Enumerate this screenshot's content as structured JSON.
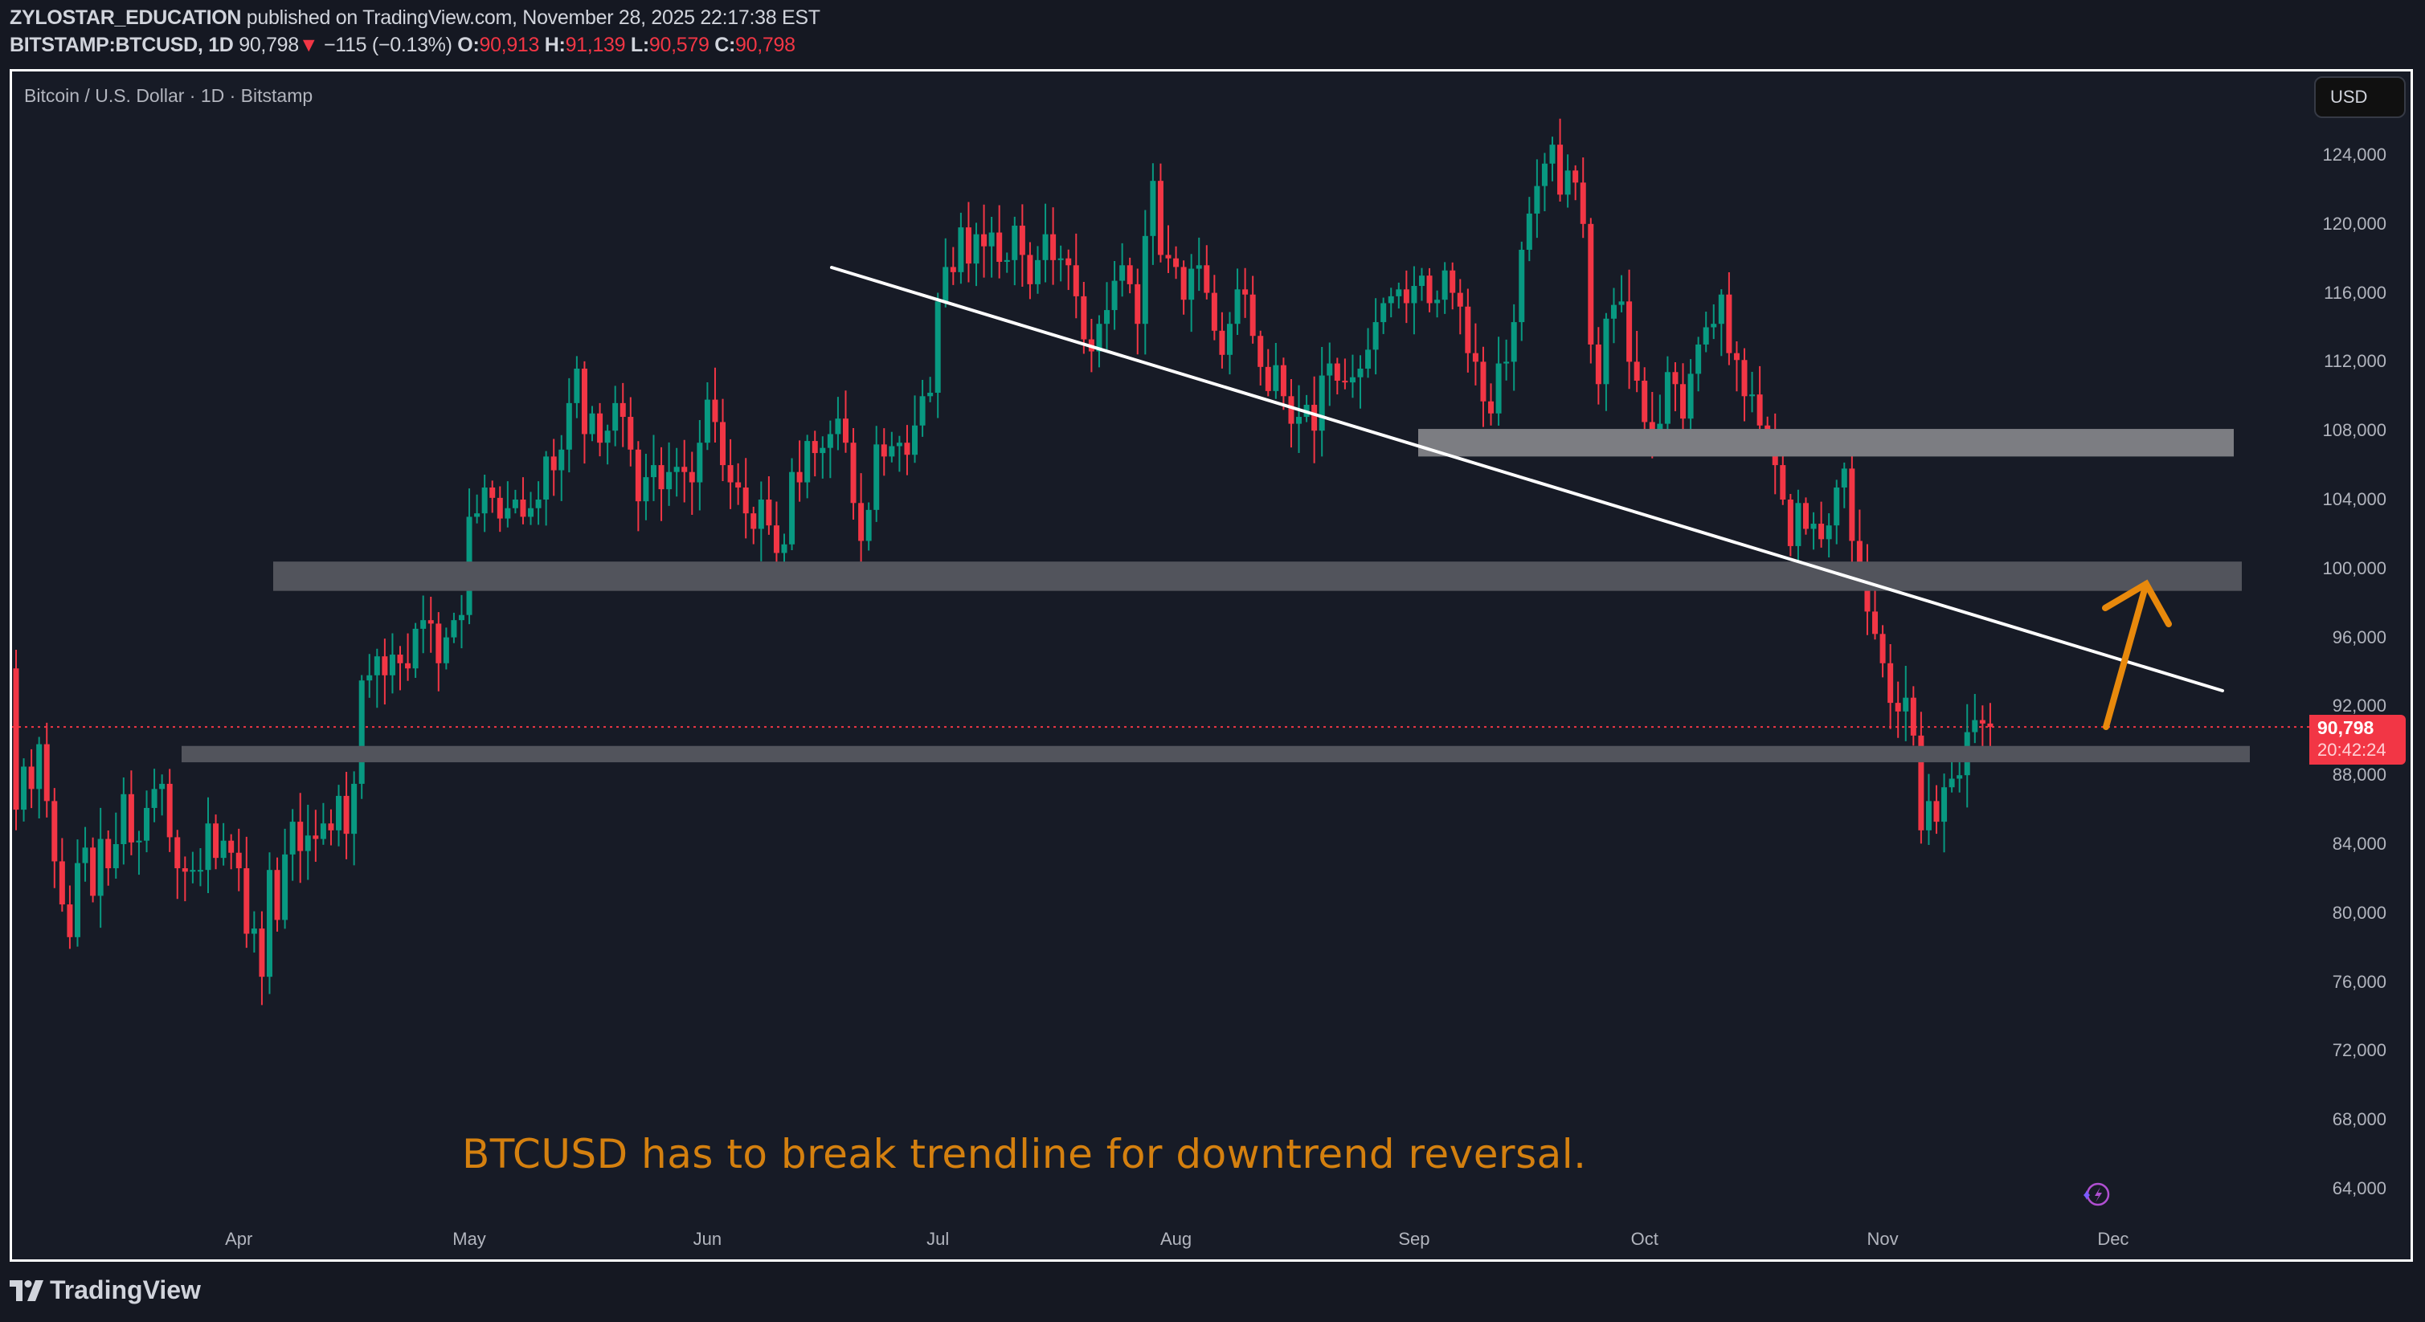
{
  "header": {
    "author": "ZYLOSTAR_EDUCATION",
    "published_text": " published on TradingView.com, November 28, 2025 22:17:38 EST",
    "symbol": "BITSTAMP:BTCUSD, 1D",
    "last": "90,798",
    "change_arrow": "▼",
    "change": "−115 (−0.13%)",
    "open_label": "O:",
    "open": "90,913",
    "high_label": "H:",
    "high": "91,139",
    "low_label": "L:",
    "low": "90,579",
    "close_label": "C:",
    "close": "90,798"
  },
  "chart": {
    "title": "Bitcoin / U.S. Dollar · 1D · Bitstamp",
    "currency_button": "USD",
    "price_tag": {
      "price": "90,798",
      "countdown": "20:42:24"
    },
    "annotation": "BTCUSD has to break trendline for downtrend reversal.",
    "footer_logo": "TradingView",
    "colors": {
      "up": "#089981",
      "down": "#f23645",
      "zone": "#7c7d82",
      "zone_dark": "#52545c",
      "arrow": "#e8890c",
      "trendline": "#ffffff",
      "annotation": "#d4800f",
      "price_line": "#f23645"
    }
  },
  "chart_data": {
    "type": "candlestick",
    "title": "Bitcoin / U.S. Dollar · 1D · Bitstamp",
    "xlabel": "",
    "ylabel": "USD",
    "x_ticks": [
      "Apr",
      "May",
      "Jun",
      "Jul",
      "Aug",
      "Sep",
      "Oct",
      "Nov",
      "Dec"
    ],
    "y_ticks": [
      "124,000",
      "120,000",
      "116,000",
      "112,000",
      "108,000",
      "104,000",
      "100,000",
      "96,000",
      "92,000",
      "88,000",
      "84,000",
      "80,000",
      "76,000",
      "72,000",
      "68,000",
      "64,000"
    ],
    "ylim": [
      61500,
      128000
    ],
    "start_date": "2025-03-03",
    "end_date": "2025-11-28",
    "last_price": 90798,
    "close": [
      86.0,
      88.5,
      87.2,
      89.8,
      86.5,
      83.0,
      80.5,
      78.6,
      82.9,
      83.8,
      81.0,
      84.3,
      82.6,
      84.0,
      86.9,
      84.1,
      84.2,
      86.1,
      87.2,
      87.5,
      84.4,
      82.6,
      82.4,
      82.5,
      82.5,
      85.2,
      83.2,
      84.2,
      83.5,
      82.6,
      78.8,
      79.1,
      76.3,
      82.5,
      79.6,
      83.4,
      85.3,
      83.6,
      84.5,
      84.3,
      85.2,
      84.8,
      86.8,
      84.6,
      87.5,
      93.5,
      93.8,
      94.9,
      93.8,
      95.0,
      94.5,
      94.2,
      96.5,
      97.0,
      96.8,
      94.5,
      96.0,
      97.0,
      97.3,
      103.0,
      103.2,
      104.7,
      104.1,
      102.9,
      103.5,
      104.0,
      103.0,
      103.5,
      104.0,
      106.5,
      105.7,
      106.9,
      109.6,
      111.6,
      107.8,
      109.0,
      107.3,
      108.0,
      109.6,
      108.8,
      106.9,
      103.9,
      105.3,
      106.0,
      104.6,
      105.6,
      105.9,
      105.6,
      105.0,
      107.3,
      109.8,
      108.5,
      106.0,
      105.0,
      104.7,
      103.2,
      102.3,
      104.0,
      102.5,
      100.9,
      101.4,
      105.6,
      105.0,
      107.4,
      106.7,
      107.0,
      107.8,
      108.7,
      107.3,
      103.8,
      101.6,
      103.4,
      107.2,
      106.5,
      107.1,
      107.3,
      106.6,
      108.3,
      110.0,
      110.2,
      115.5,
      117.5,
      117.2,
      119.8,
      117.7,
      119.4,
      118.7,
      119.5,
      117.8,
      117.9,
      119.9,
      118.2,
      116.5,
      117.9,
      119.4,
      117.9,
      118.0,
      117.6,
      115.8,
      113.3,
      112.6,
      114.2,
      115.0,
      116.7,
      117.6,
      116.5,
      114.2,
      119.3,
      122.5,
      118.2,
      118.0,
      117.5,
      115.6,
      117.4,
      117.6,
      116.0,
      113.8,
      112.4,
      114.2,
      116.2,
      115.9,
      113.5,
      111.7,
      110.3,
      111.8,
      110.0,
      108.4,
      108.8,
      109.5,
      108.0,
      111.2,
      111.9,
      110.9,
      110.8,
      111.1,
      111.6,
      112.7,
      114.3,
      115.4,
      115.8,
      116.2,
      115.4,
      116.4,
      117.0,
      115.4,
      115.6,
      117.3,
      116.0,
      115.2,
      112.5,
      112.0,
      109.7,
      109.0,
      111.9,
      112.0,
      114.3,
      118.5,
      120.6,
      122.2,
      123.5,
      124.6,
      121.7,
      123.1,
      122.4,
      120.0,
      113.0,
      110.7,
      114.5,
      115.3,
      115.5,
      112.0,
      110.9,
      108.5,
      107.8,
      108.4,
      111.4,
      110.7,
      108.7,
      111.3,
      113.0,
      114.0,
      114.2,
      115.9,
      112.5,
      112.1,
      110.0,
      110.1,
      108.3,
      107.5,
      106.0,
      104.0,
      101.3,
      103.8,
      102.3,
      102.6,
      101.7,
      102.5,
      104.7,
      105.8,
      101.6,
      99.7,
      97.5,
      96.2,
      94.5,
      92.2,
      91.7,
      92.5,
      90.3,
      84.8,
      86.5,
      85.3,
      87.3,
      87.8,
      88.0,
      90.5,
      91.2,
      91.0,
      90.8
    ],
    "zones": [
      {
        "name": "resistance-108k",
        "from": 106500,
        "to": 108100
      },
      {
        "name": "resistance-100k",
        "from": 98700,
        "to": 100400
      },
      {
        "name": "support-89k",
        "from": 88750,
        "to": 89700
      }
    ],
    "trendline": {
      "from": {
        "date": "2025-06-20",
        "price": 117700
      },
      "to": {
        "date": "2025-12-17",
        "price": 93000
      }
    },
    "arrow": {
      "from_price": 90900,
      "to_price": 99200,
      "direction": "up"
    },
    "annotation": "BTCUSD has to break trendline for downtrend reversal."
  }
}
